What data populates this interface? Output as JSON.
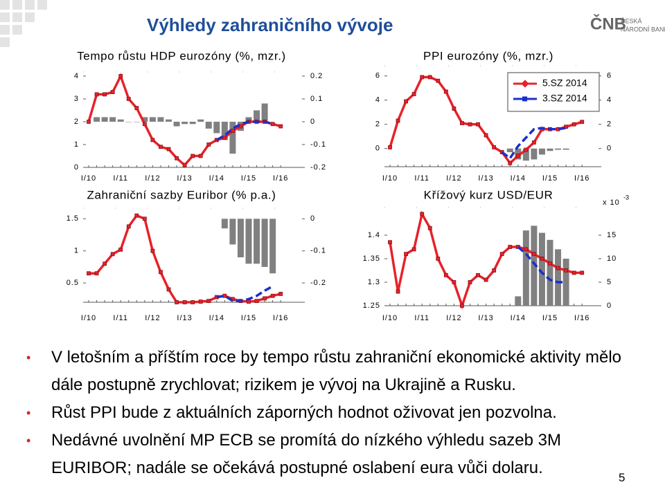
{
  "slide": {
    "title": "Výhledy zahraničního vývoje",
    "logo": {
      "name": "ČNB",
      "line1": "ČESKÁ",
      "line2": "NÁRODNÍ BANKA"
    },
    "bullets": [
      "V letošním a příštím roce by tempo růstu zahraniční ekonomické aktivity mělo dále postupně zrychlovat; rizikem je vývoj na Ukrajině a Rusku.",
      "Růst PPI bude z aktuálních záporných hodnot oživovat jen pozvolna.",
      "Nedávné uvolnění MP ECB se promítá do nízkého výhledu sazeb 3M EURIBOR; nadále se očekává postupné oslabení eura vůči dolaru."
    ],
    "page_number": "5"
  },
  "chart_data": [
    {
      "type": "combo",
      "title": "Tempo růstu HDP eurozóny (%, mzr.)",
      "categories": [
        "I/10",
        null,
        null,
        null,
        "I/11",
        null,
        null,
        null,
        "I/12",
        null,
        null,
        null,
        "I/13",
        null,
        null,
        null,
        "I/14",
        null,
        null,
        null,
        "I/15",
        null,
        null,
        null,
        "I/16"
      ],
      "ylim": [
        0,
        4
      ],
      "yticks": [
        0,
        1,
        2,
        3,
        4
      ],
      "y2lim": [
        -0.2,
        0.2
      ],
      "y2ticks": [
        -0.2,
        -0.1,
        0,
        0.1,
        0.2
      ],
      "series": [
        {
          "type": "bar",
          "axis": "y2",
          "color": "#808080",
          "values": [
            null,
            0.02,
            0.02,
            0.02,
            0.01,
            0,
            0,
            0.02,
            0.02,
            0.02,
            0.01,
            -0.02,
            -0.01,
            -0.01,
            0.01,
            -0.03,
            -0.05,
            -0.08,
            -0.14,
            -0.04,
            0.02,
            0.05,
            0.08,
            null,
            null
          ]
        },
        {
          "type": "line",
          "color": "#e8212a",
          "marker": "square",
          "values": [
            2.0,
            3.2,
            3.2,
            3.3,
            4.0,
            3.0,
            2.6,
            1.9,
            1.2,
            0.9,
            0.8,
            0.4,
            0.1,
            0.5,
            0.5,
            1.0,
            1.2,
            1.3,
            1.6,
            1.8,
            2.0,
            2.0,
            2.0,
            1.9,
            1.8
          ]
        },
        {
          "type": "line",
          "color": "#1a2fcc",
          "dashed": true,
          "values": [
            null,
            null,
            null,
            null,
            null,
            null,
            null,
            null,
            null,
            null,
            null,
            null,
            null,
            null,
            null,
            null,
            1.2,
            1.4,
            1.7,
            1.9,
            2.0,
            2.0,
            2.0,
            1.9,
            null
          ]
        }
      ]
    },
    {
      "type": "combo",
      "title": "Zahraniční sazby Euribor (% p.a.)",
      "categories": [
        "I/10",
        null,
        null,
        null,
        "I/11",
        null,
        null,
        null,
        "I/12",
        null,
        null,
        null,
        "I/13",
        null,
        null,
        null,
        "I/14",
        null,
        null,
        null,
        "I/15",
        null,
        null,
        null,
        "I/16"
      ],
      "ylim": [
        0.2,
        1.6
      ],
      "yticks": [
        0.5,
        1,
        1.5
      ],
      "y2lim": [
        -0.26,
        0.02
      ],
      "y2ticks": [
        -0.2,
        -0.1,
        0
      ],
      "series": [
        {
          "type": "bar",
          "axis": "y2",
          "color": "#808080",
          "values": [
            null,
            null,
            null,
            null,
            null,
            null,
            null,
            null,
            null,
            null,
            null,
            null,
            null,
            null,
            null,
            null,
            null,
            -0.03,
            -0.08,
            -0.12,
            -0.14,
            -0.14,
            -0.15,
            -0.17,
            null
          ]
        },
        {
          "type": "line",
          "color": "#e8212a",
          "marker": "square",
          "values": [
            0.65,
            0.65,
            0.8,
            0.95,
            1.02,
            1.38,
            1.55,
            1.5,
            1.0,
            0.67,
            0.4,
            0.2,
            0.2,
            0.2,
            0.21,
            0.22,
            0.28,
            0.3,
            0.25,
            0.22,
            0.21,
            0.22,
            0.26,
            0.3,
            0.33
          ]
        },
        {
          "type": "line",
          "color": "#1a2fcc",
          "dashed": true,
          "values": [
            null,
            null,
            null,
            null,
            null,
            null,
            null,
            null,
            null,
            null,
            null,
            null,
            null,
            null,
            null,
            null,
            0.28,
            0.3,
            0.22,
            0.22,
            0.25,
            0.3,
            0.38,
            0.45,
            null
          ]
        }
      ]
    },
    {
      "type": "combo",
      "title": "PPI eurozóny (%, mzr.)",
      "categories": [
        "I/10",
        null,
        null,
        null,
        "I/11",
        null,
        null,
        null,
        "I/12",
        null,
        null,
        null,
        "I/13",
        null,
        null,
        null,
        "I/14",
        null,
        null,
        null,
        "I/15",
        null,
        null,
        null,
        "I/16"
      ],
      "ylim": [
        -1.5,
        6.5
      ],
      "yticks": [
        0,
        2,
        4,
        6
      ],
      "y2lim": [
        -1.5,
        6.5
      ],
      "y2ticks": [
        0,
        2,
        4,
        6
      ],
      "legend": "upper right",
      "series": [
        {
          "type": "bar",
          "axis": "y2",
          "color": "#808080",
          "values": [
            null,
            null,
            null,
            null,
            null,
            null,
            null,
            null,
            null,
            null,
            null,
            null,
            null,
            null,
            null,
            -0.3,
            -0.9,
            -1.0,
            -0.9,
            -0.5,
            -0.2,
            -0.1,
            -0.1,
            null,
            null
          ]
        },
        {
          "type": "line",
          "name": "5.SZ 2014",
          "color": "#e8212a",
          "marker": "square",
          "values": [
            0.1,
            2.3,
            3.9,
            4.5,
            5.9,
            5.9,
            5.6,
            4.7,
            3.3,
            2.1,
            2.0,
            2.0,
            1.1,
            0.1,
            -0.3,
            -1.2,
            -0.6,
            -0.1,
            0.5,
            1.6,
            1.6,
            1.6,
            1.8,
            2.0,
            2.2
          ]
        },
        {
          "type": "line",
          "name": "3.SZ 2014",
          "color": "#1a2fcc",
          "dashed": true,
          "values": [
            null,
            null,
            null,
            null,
            null,
            null,
            null,
            null,
            null,
            null,
            null,
            null,
            null,
            null,
            -0.3,
            -0.8,
            0.2,
            0.9,
            1.6,
            1.7,
            1.6,
            1.6,
            1.7,
            null,
            null
          ]
        }
      ]
    },
    {
      "type": "combo",
      "title": "Křížový kurz USD/EUR",
      "categories": [
        "I/10",
        null,
        null,
        null,
        "I/11",
        null,
        null,
        null,
        "I/12",
        null,
        null,
        null,
        "I/13",
        null,
        null,
        null,
        "I/14",
        null,
        null,
        null,
        "I/15",
        null,
        null,
        null,
        "I/16"
      ],
      "ylim": [
        1.25,
        1.45
      ],
      "yticks": [
        1.25,
        1.3,
        1.35,
        1.4
      ],
      "y2lim": [
        0,
        20
      ],
      "y2ticks": [
        0,
        5,
        10,
        15
      ],
      "y2_label": "x 10",
      "y2_label_exponent": "-3",
      "series": [
        {
          "type": "bar",
          "axis": "y2",
          "color": "#808080",
          "values": [
            null,
            null,
            null,
            null,
            null,
            null,
            null,
            null,
            null,
            null,
            null,
            null,
            null,
            null,
            null,
            null,
            2,
            16,
            17,
            15.5,
            14,
            12,
            10,
            null,
            null
          ]
        },
        {
          "type": "line",
          "color": "#e8212a",
          "marker": "square",
          "values": [
            1.385,
            1.28,
            1.36,
            1.37,
            1.445,
            1.415,
            1.35,
            1.315,
            1.3,
            1.25,
            1.3,
            1.315,
            1.305,
            1.325,
            1.36,
            1.375,
            1.375,
            1.37,
            1.36,
            1.35,
            1.34,
            1.33,
            1.325,
            1.32,
            1.32
          ]
        },
        {
          "type": "line",
          "color": "#1a2fcc",
          "dashed": true,
          "values": [
            null,
            null,
            null,
            null,
            null,
            null,
            null,
            null,
            null,
            null,
            null,
            null,
            null,
            null,
            null,
            null,
            1.375,
            1.36,
            1.34,
            1.32,
            1.305,
            1.3,
            1.3,
            null,
            null
          ]
        }
      ]
    }
  ]
}
